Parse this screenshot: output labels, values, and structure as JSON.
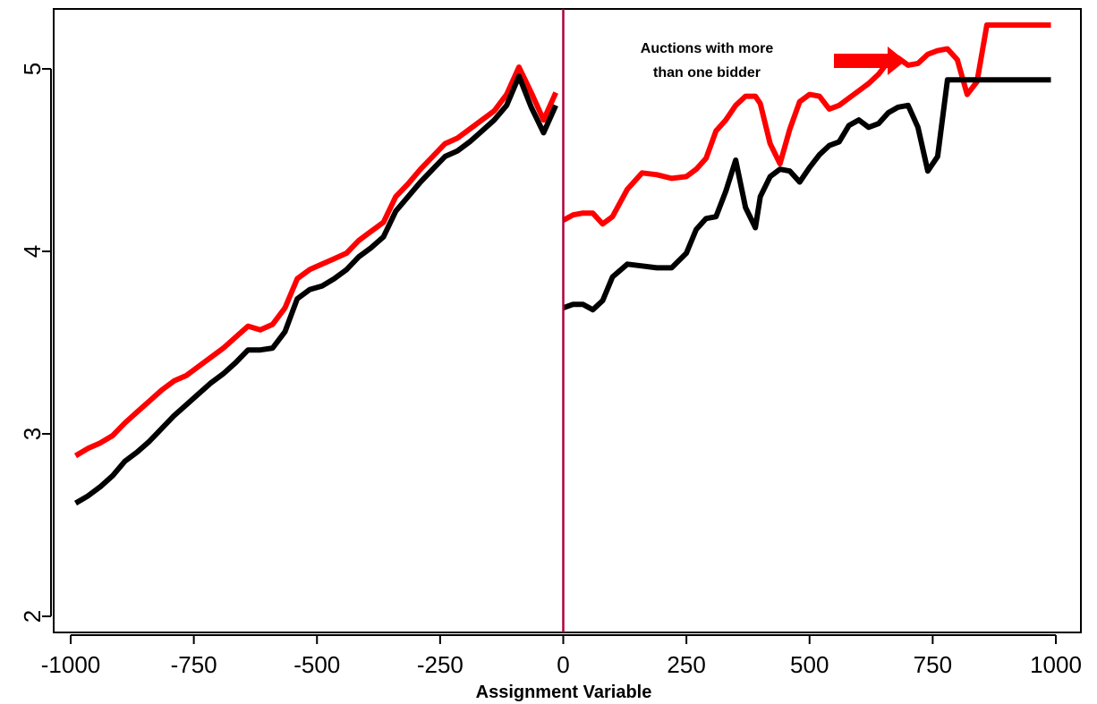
{
  "chart_data": {
    "type": "line",
    "title": "",
    "xlabel": "Assignment Variable",
    "ylabel": "",
    "xlim": [
      -1000,
      1000
    ],
    "ylim": [
      2,
      5
    ],
    "x_ticks": [
      -1000,
      -750,
      -500,
      -250,
      0,
      250,
      500,
      750,
      1000
    ],
    "x_tick_labels": [
      "-1000",
      "-750",
      "-500",
      "-250",
      "0",
      "250",
      "500",
      "750",
      "1000"
    ],
    "y_ticks": [
      2,
      3,
      4,
      5
    ],
    "y_tick_labels": [
      "2",
      "3",
      "4",
      "5"
    ],
    "grid": false,
    "cutoff": 0,
    "annotation": {
      "lines": [
        "Auctions with more",
        "than one bidder"
      ],
      "arrow_color": "#ff0000"
    },
    "series": [
      {
        "color": "#ff0000",
        "segments": [
          {
            "x": [
              -990,
              -965,
              -940,
              -915,
              -890,
              -865,
              -840,
              -815,
              -790,
              -765,
              -740,
              -715,
              -690,
              -665,
              -640,
              -615,
              -590,
              -565,
              -540,
              -515,
              -490,
              -465,
              -440,
              -415,
              -390,
              -365,
              -340,
              -315,
              -290,
              -265,
              -240,
              -215,
              -190,
              -165,
              -140,
              -115,
              -90,
              -65,
              -40,
              -15
            ],
            "y": [
              2.88,
              2.92,
              2.95,
              2.99,
              3.06,
              3.12,
              3.18,
              3.24,
              3.29,
              3.32,
              3.37,
              3.42,
              3.47,
              3.53,
              3.59,
              3.57,
              3.6,
              3.69,
              3.85,
              3.9,
              3.93,
              3.96,
              3.99,
              4.06,
              4.11,
              4.16,
              4.3,
              4.37,
              4.45,
              4.52,
              4.59,
              4.62,
              4.67,
              4.72,
              4.77,
              4.86,
              5.01,
              4.87,
              4.72,
              4.87
            ]
          },
          {
            "x": [
              0,
              20,
              40,
              60,
              80,
              100,
              130,
              160,
              190,
              220,
              250,
              270,
              290,
              310,
              330,
              350,
              370,
              390,
              400,
              420,
              440,
              460,
              480,
              500,
              520,
              540,
              560,
              580,
              600,
              620,
              640,
              660,
              680,
              700,
              720,
              740,
              760,
              780,
              800,
              820,
              840,
              860,
              880,
              900,
              920,
              940,
              960,
              980,
              990
            ],
            "y": [
              4.17,
              4.2,
              4.21,
              4.21,
              4.15,
              4.19,
              4.34,
              4.43,
              4.42,
              4.4,
              4.41,
              4.45,
              4.51,
              4.66,
              4.72,
              4.8,
              4.85,
              4.85,
              4.81,
              4.59,
              4.48,
              4.67,
              4.82,
              4.86,
              4.85,
              4.78,
              4.8,
              4.84,
              4.88,
              4.92,
              4.97,
              5.04,
              5.06,
              5.02,
              5.03,
              5.08,
              5.1,
              5.11,
              5.05,
              4.86,
              4.93,
              5.24,
              5.24,
              5.24,
              5.24,
              5.24,
              5.24,
              5.24,
              5.24
            ]
          }
        ]
      },
      {
        "color": "#000000",
        "segments": [
          {
            "x": [
              -990,
              -965,
              -940,
              -915,
              -890,
              -865,
              -840,
              -815,
              -790,
              -765,
              -740,
              -715,
              -690,
              -665,
              -640,
              -615,
              -590,
              -565,
              -540,
              -515,
              -490,
              -465,
              -440,
              -415,
              -390,
              -365,
              -340,
              -315,
              -290,
              -265,
              -240,
              -215,
              -190,
              -165,
              -140,
              -115,
              -90,
              -65,
              -40,
              -15
            ],
            "y": [
              2.62,
              2.66,
              2.71,
              2.77,
              2.85,
              2.9,
              2.96,
              3.03,
              3.1,
              3.16,
              3.22,
              3.28,
              3.33,
              3.39,
              3.46,
              3.46,
              3.47,
              3.56,
              3.74,
              3.79,
              3.81,
              3.85,
              3.9,
              3.97,
              4.02,
              4.08,
              4.22,
              4.3,
              4.38,
              4.45,
              4.52,
              4.55,
              4.6,
              4.66,
              4.72,
              4.8,
              4.96,
              4.79,
              4.65,
              4.8
            ]
          },
          {
            "x": [
              0,
              20,
              40,
              60,
              80,
              100,
              130,
              160,
              190,
              220,
              250,
              270,
              290,
              310,
              330,
              350,
              370,
              390,
              400,
              420,
              440,
              460,
              480,
              500,
              520,
              540,
              560,
              580,
              600,
              620,
              640,
              660,
              680,
              700,
              720,
              740,
              760,
              780,
              800,
              820,
              840,
              860,
              880,
              900,
              920,
              940,
              960,
              980,
              990
            ],
            "y": [
              3.69,
              3.71,
              3.71,
              3.68,
              3.73,
              3.86,
              3.93,
              3.92,
              3.91,
              3.91,
              3.99,
              4.12,
              4.18,
              4.19,
              4.33,
              4.5,
              4.24,
              4.13,
              4.3,
              4.41,
              4.45,
              4.44,
              4.38,
              4.46,
              4.53,
              4.58,
              4.6,
              4.69,
              4.72,
              4.68,
              4.7,
              4.76,
              4.79,
              4.8,
              4.68,
              4.44,
              4.52,
              4.94,
              4.94,
              4.94,
              4.94,
              4.94,
              4.94,
              4.94,
              4.94,
              4.94,
              4.94,
              4.94,
              4.94
            ]
          }
        ]
      }
    ]
  }
}
